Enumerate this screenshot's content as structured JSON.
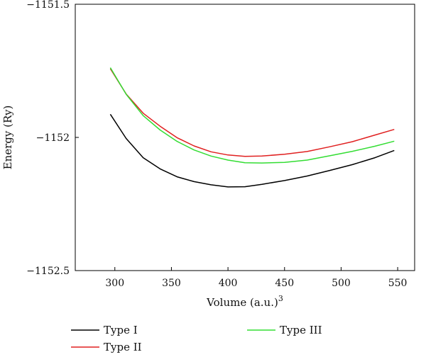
{
  "chart_data": {
    "type": "line",
    "title": "",
    "xlabel": "Volume (a.u.)",
    "xlabel_sup": "3",
    "ylabel": "Energy (Ry)",
    "xlim": [
      265,
      565
    ],
    "ylim": [
      -1152.5,
      -1151.5
    ],
    "x_ticks": [
      300,
      350,
      400,
      450,
      500,
      550
    ],
    "x_tick_labels": [
      "300",
      "350",
      "400",
      "450",
      "500",
      "550"
    ],
    "y_ticks": [
      -1151.5,
      -1152,
      -1152.5
    ],
    "y_tick_labels": [
      "−1151.5",
      "−1152",
      "−1152.5"
    ],
    "grid": false,
    "legend_position": "bottom",
    "series": [
      {
        "name": "Type I",
        "color": "#000000",
        "x": [
          296,
          310,
          325,
          340,
          355,
          370,
          385,
          400,
          415,
          430,
          450,
          470,
          490,
          510,
          530,
          547
        ],
        "y": [
          -1151.913,
          -1152.004,
          -1152.076,
          -1152.118,
          -1152.148,
          -1152.166,
          -1152.178,
          -1152.186,
          -1152.185,
          -1152.176,
          -1152.162,
          -1152.145,
          -1152.124,
          -1152.102,
          -1152.076,
          -1152.049
        ]
      },
      {
        "name": "Type II",
        "color": "#e02020",
        "x": [
          296,
          310,
          325,
          340,
          355,
          370,
          385,
          400,
          415,
          430,
          450,
          470,
          490,
          510,
          530,
          547
        ],
        "y": [
          -1151.742,
          -1151.837,
          -1151.909,
          -1151.958,
          -1152.001,
          -1152.032,
          -1152.054,
          -1152.066,
          -1152.071,
          -1152.07,
          -1152.063,
          -1152.053,
          -1152.035,
          -1152.016,
          -1151.991,
          -1151.97
        ]
      },
      {
        "name": "Type III",
        "color": "#33dd33",
        "x": [
          296,
          310,
          325,
          340,
          355,
          370,
          385,
          400,
          415,
          430,
          450,
          470,
          490,
          510,
          530,
          547
        ],
        "y": [
          -1151.738,
          -1151.838,
          -1151.918,
          -1151.972,
          -1152.015,
          -1152.047,
          -1152.07,
          -1152.085,
          -1152.095,
          -1152.096,
          -1152.094,
          -1152.085,
          -1152.069,
          -1152.052,
          -1152.033,
          -1152.014
        ]
      }
    ]
  }
}
